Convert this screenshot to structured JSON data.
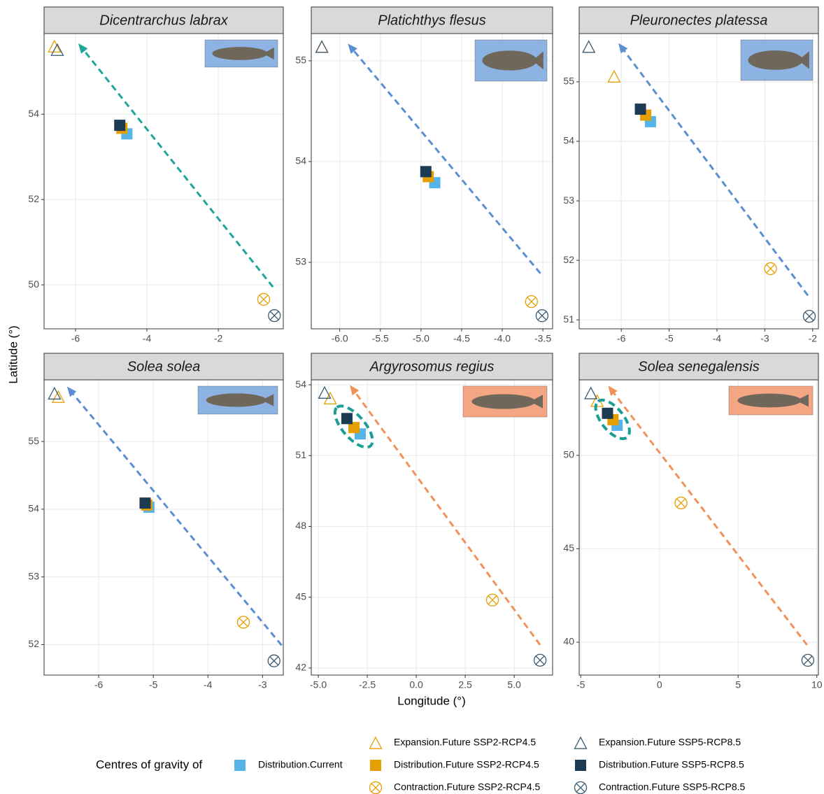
{
  "chart_data": [
    {
      "type": "scatter",
      "title": "Dicentrarchus labrax",
      "xlim": [
        -6.88,
        -0.18
      ],
      "ylim": [
        48.97,
        55.89
      ],
      "xticks": [
        -6,
        -4,
        -2
      ],
      "yticks": [
        50,
        52,
        54
      ],
      "arrow": {
        "color": "#1fa59c",
        "x": [
          -0.47,
          -5.92
        ],
        "y": [
          49.95,
          55.66
        ]
      },
      "highlight": false,
      "image_color": "#8db3e2",
      "series": [
        {
          "x": [
            -4.56
          ],
          "y": [
            53.54
          ]
        },
        {
          "x": [
            -6.59
          ],
          "y": [
            55.59
          ]
        },
        {
          "x": [
            -4.7
          ],
          "y": [
            53.67
          ]
        },
        {
          "x": [
            -0.73
          ],
          "y": [
            49.66
          ]
        },
        {
          "x": [
            -6.51
          ],
          "y": [
            55.51
          ]
        },
        {
          "x": [
            -4.76
          ],
          "y": [
            53.74
          ]
        },
        {
          "x": [
            -0.43
          ],
          "y": [
            49.28
          ]
        }
      ]
    },
    {
      "type": "scatter",
      "title": "Platichthys flesus",
      "xlim": [
        -6.35,
        -3.38
      ],
      "ylim": [
        52.34,
        55.27
      ],
      "xticks": [
        {
          "value": -6,
          "label": "-6.0"
        },
        -5.5,
        {
          "value": -5,
          "label": "-5.0"
        },
        -4.5,
        {
          "value": -4,
          "label": "-4.0"
        },
        -3.5
      ],
      "yticks": [
        53,
        54,
        55
      ],
      "arrow": {
        "color": "#5b8fd4",
        "x": [
          -3.53,
          -5.9
        ],
        "y": [
          52.89,
          55.17
        ]
      },
      "highlight": false,
      "image_color": "#8db3e2",
      "series": [
        {
          "x": [
            -4.83
          ],
          "y": [
            53.79
          ]
        },
        {
          "x": [
            -6.22
          ],
          "y": [
            55.14
          ]
        },
        {
          "x": [
            -4.91
          ],
          "y": [
            53.85
          ]
        },
        {
          "x": [
            -3.64
          ],
          "y": [
            52.61
          ]
        },
        {
          "x": [
            -6.22
          ],
          "y": [
            55.14
          ]
        },
        {
          "x": [
            -4.94
          ],
          "y": [
            53.9
          ]
        },
        {
          "x": [
            -3.51
          ],
          "y": [
            52.47
          ]
        }
      ]
    },
    {
      "type": "scatter",
      "title": "Pleuronectes platessa",
      "xlim": [
        -6.88,
        -1.88
      ],
      "ylim": [
        50.85,
        55.81
      ],
      "xticks": [
        -6,
        -5,
        -4,
        -3,
        -2
      ],
      "yticks": [
        51,
        52,
        53,
        54,
        55
      ],
      "arrow": {
        "color": "#5b8fd4",
        "x": [
          -2.1,
          -6.06
        ],
        "y": [
          51.41,
          55.65
        ]
      },
      "highlight": false,
      "image_color": "#8db3e2",
      "series": [
        {
          "x": [
            -5.39
          ],
          "y": [
            54.33
          ]
        },
        {
          "x": [
            -6.15
          ],
          "y": [
            55.09
          ]
        },
        {
          "x": [
            -5.49
          ],
          "y": [
            54.44
          ]
        },
        {
          "x": [
            -2.88
          ],
          "y": [
            51.86
          ]
        },
        {
          "x": [
            -6.68
          ],
          "y": [
            55.59
          ]
        },
        {
          "x": [
            -5.6
          ],
          "y": [
            54.54
          ]
        },
        {
          "x": [
            -2.07
          ],
          "y": [
            51.06
          ]
        }
      ]
    },
    {
      "type": "scatter",
      "title": "Solea solea",
      "xlim": [
        -7.0,
        -2.62
      ],
      "ylim": [
        51.55,
        55.91
      ],
      "xticks": [
        -6,
        -5,
        -4,
        -3
      ],
      "yticks": [
        52,
        53,
        54,
        55
      ],
      "arrow": {
        "color": "#5b8fd4",
        "x": [
          -2.65,
          -6.58
        ],
        "y": [
          51.99,
          55.81
        ]
      },
      "highlight": false,
      "image_color": "#8db3e2",
      "series": [
        {
          "x": [
            -5.08
          ],
          "y": [
            54.03
          ]
        },
        {
          "x": [
            -6.74
          ],
          "y": [
            55.66
          ]
        },
        {
          "x": [
            -5.12
          ],
          "y": [
            54.06
          ]
        },
        {
          "x": [
            -3.35
          ],
          "y": [
            52.33
          ]
        },
        {
          "x": [
            -6.81
          ],
          "y": [
            55.71
          ]
        },
        {
          "x": [
            -5.15
          ],
          "y": [
            54.09
          ]
        },
        {
          "x": [
            -2.79
          ],
          "y": [
            51.76
          ]
        }
      ]
    },
    {
      "type": "scatter",
      "title": "Argyrosomus regius",
      "xlim": [
        -5.36,
        6.96
      ],
      "ylim": [
        41.7,
        54.21
      ],
      "xticks": [
        {
          "value": -5,
          "label": "-5.0"
        },
        -2.5,
        {
          "value": 0,
          "label": "0.0"
        },
        2.5,
        {
          "value": 5,
          "label": "5.0"
        }
      ],
      "yticks": [
        42,
        45,
        48,
        51,
        54
      ],
      "arrow": {
        "color": "#f0935a",
        "x": [
          6.32,
          -3.39
        ],
        "y": [
          42.98,
          53.99
        ]
      },
      "highlight": true,
      "image_color": "#f4a582",
      "series": [
        {
          "x": [
            -2.86
          ],
          "y": [
            51.92
          ]
        },
        {
          "x": [
            -4.39
          ],
          "y": [
            53.43
          ]
        },
        {
          "x": [
            -3.18
          ],
          "y": [
            52.19
          ]
        },
        {
          "x": [
            3.89
          ],
          "y": [
            44.88
          ]
        },
        {
          "x": [
            -4.68
          ],
          "y": [
            53.67
          ]
        },
        {
          "x": [
            -3.54
          ],
          "y": [
            52.57
          ]
        },
        {
          "x": [
            6.32
          ],
          "y": [
            42.33
          ]
        }
      ]
    },
    {
      "type": "scatter",
      "title": "Solea senegalensis",
      "xlim": [
        -5.1,
        10.1
      ],
      "ylim": [
        38.24,
        54.04
      ],
      "xticks": [
        -5,
        0,
        5,
        10
      ],
      "yticks": [
        40,
        45,
        50
      ],
      "arrow": {
        "color": "#f0935a",
        "x": [
          9.38,
          -3.26
        ],
        "y": [
          39.85,
          53.73
        ]
      },
      "highlight": true,
      "image_color": "#f4a582",
      "series": [
        {
          "x": [
            -2.69
          ],
          "y": [
            51.61
          ]
        },
        {
          "x": [
            -3.96
          ],
          "y": [
            52.92
          ]
        },
        {
          "x": [
            -2.95
          ],
          "y": [
            51.91
          ]
        },
        {
          "x": [
            1.37
          ],
          "y": [
            47.45
          ]
        },
        {
          "x": [
            -4.36
          ],
          "y": [
            53.33
          ]
        },
        {
          "x": [
            -3.3
          ],
          "y": [
            52.25
          ]
        },
        {
          "x": [
            9.43
          ],
          "y": [
            39.03
          ]
        }
      ]
    }
  ],
  "x_label": "Longitude (°)",
  "y_label": "Latitude (°)",
  "legend": {
    "title": "Centres of gravity of",
    "series": [
      {
        "name": "Distribution.Current",
        "color": "#56b4e9",
        "shape": "square"
      },
      {
        "name": "Expansion.Future SSP2-RCP4.5",
        "color": "#e69f00",
        "shape": "triangle"
      },
      {
        "name": "Distribution.Future SSP2-RCP4.5",
        "color": "#e69f00",
        "shape": "square"
      },
      {
        "name": "Contraction.Future SSP2-RCP4.5",
        "color": "#e69f00",
        "shape": "circle-x"
      },
      {
        "name": "Expansion.Future SSP5-RCP8.5",
        "color": "#1c3a52",
        "shape": "triangle"
      },
      {
        "name": "Distribution.Future SSP5-RCP8.5",
        "color": "#1c3a52",
        "shape": "square"
      },
      {
        "name": "Contraction.Future SSP5-RCP8.5",
        "color": "#1c3a52",
        "shape": "circle-x"
      }
    ]
  }
}
